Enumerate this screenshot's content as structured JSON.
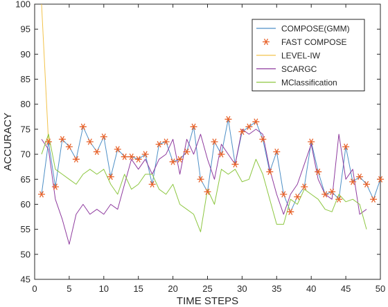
{
  "chart_data": {
    "type": "line",
    "xlabel": "TIME STEPS",
    "ylabel": "ACCURACY",
    "xlim": [
      0,
      50
    ],
    "ylim": [
      45,
      100
    ],
    "xticks": [
      0,
      5,
      10,
      15,
      20,
      25,
      30,
      35,
      40,
      45,
      50
    ],
    "yticks": [
      45,
      50,
      55,
      60,
      65,
      70,
      75,
      80,
      85,
      90,
      95,
      100
    ],
    "grid": false,
    "legend_position": "top-right",
    "series": [
      {
        "name": "COMPOSE(GMM)",
        "style": "line",
        "color": "#4d8fc6",
        "x": [
          1,
          2,
          3,
          4,
          5,
          6,
          7,
          8,
          9,
          10,
          11,
          12,
          13,
          14,
          15,
          16,
          17,
          18,
          19,
          20,
          21,
          22,
          23,
          24,
          25,
          26,
          27,
          28,
          29,
          30,
          31,
          32,
          33,
          34,
          35,
          36,
          37,
          38,
          39,
          40,
          41,
          42,
          43,
          44,
          45,
          46,
          47,
          48,
          49,
          50
        ],
        "values": [
          62,
          72.5,
          63.5,
          73,
          71.5,
          69,
          75.5,
          72.5,
          70.5,
          73.5,
          65.5,
          71,
          69.5,
          69.5,
          69,
          70,
          64,
          72,
          72.5,
          68.5,
          69,
          70.5,
          75.5,
          65,
          62.5,
          72.5,
          70,
          77,
          68,
          74.5,
          75.5,
          76.5,
          73,
          66.5,
          70.5,
          62,
          58.5,
          61.5,
          63.5,
          72.5,
          66.5,
          62,
          62.5,
          61,
          71.5,
          64.5,
          65.5,
          64,
          61,
          65
        ]
      },
      {
        "name": "FAST COMPOSE",
        "style": "marker",
        "color": "#e8622a",
        "x": [
          1,
          2,
          3,
          4,
          5,
          6,
          7,
          8,
          9,
          10,
          11,
          12,
          13,
          14,
          15,
          16,
          17,
          18,
          19,
          20,
          21,
          22,
          23,
          24,
          25,
          26,
          27,
          28,
          29,
          30,
          31,
          32,
          33,
          34,
          35,
          36,
          37,
          38,
          39,
          40,
          41,
          42,
          43,
          44,
          45,
          46,
          47,
          48,
          49,
          50
        ],
        "values": [
          62,
          72.5,
          63.5,
          73,
          71.5,
          69,
          75.5,
          72.5,
          70.5,
          73.5,
          65.5,
          71,
          69.5,
          69.5,
          69,
          70,
          64,
          72,
          72.5,
          68.5,
          69,
          70.5,
          75.5,
          65,
          62.5,
          72.5,
          70,
          77,
          68,
          74.5,
          75.5,
          76.5,
          73,
          66.5,
          70.5,
          62,
          58.5,
          61.5,
          63.5,
          72.5,
          66.5,
          62,
          62.5,
          61,
          71.5,
          64.5,
          65.5,
          64,
          61,
          65
        ]
      },
      {
        "name": "LEVEL-IW",
        "style": "line",
        "color": "#f2c24a",
        "x": [
          1,
          2
        ],
        "values": [
          100,
          72.5
        ]
      },
      {
        "name": "SCARGC",
        "style": "line",
        "color": "#8e3a9e",
        "x": [
          1,
          2,
          3,
          4,
          5,
          6,
          7,
          8,
          9,
          10,
          11,
          12,
          13,
          14,
          15,
          16,
          17,
          18,
          19,
          20,
          21,
          22,
          23,
          24,
          25,
          26,
          27,
          28,
          29,
          30,
          31,
          32,
          33,
          34,
          35,
          36,
          37,
          38,
          39,
          40,
          41,
          42,
          43,
          44,
          45,
          46,
          47,
          48
        ],
        "values": [
          73,
          71,
          61,
          57,
          52,
          58,
          60,
          58,
          59,
          58,
          60,
          59,
          64,
          69,
          67,
          69,
          66,
          69,
          70,
          73,
          66,
          73,
          70,
          74,
          69,
          65,
          72,
          70,
          68,
          75,
          74,
          75,
          74,
          67,
          62,
          58,
          62,
          64,
          68,
          72,
          65,
          62,
          61,
          74,
          65,
          67,
          58,
          59
        ]
      },
      {
        "name": "MClassification",
        "style": "line",
        "color": "#8cc63f",
        "x": [
          1,
          2,
          3,
          4,
          5,
          6,
          7,
          8,
          9,
          10,
          11,
          12,
          13,
          14,
          15,
          16,
          17,
          18,
          19,
          20,
          21,
          22,
          23,
          24,
          25,
          26,
          27,
          28,
          29,
          30,
          31,
          32,
          33,
          34,
          35,
          36,
          37,
          38,
          39,
          40,
          41,
          42,
          43,
          44,
          45,
          46,
          47,
          48
        ],
        "values": [
          70,
          74,
          67,
          66,
          65,
          64,
          66,
          67,
          66,
          67,
          64,
          62,
          66,
          63,
          64,
          66,
          66,
          63,
          62,
          64,
          60,
          59,
          58,
          54.5,
          63,
          60,
          67,
          66,
          67,
          64.5,
          65,
          69,
          66,
          61,
          56,
          56,
          61,
          60,
          63,
          62,
          61,
          59,
          58.5,
          62,
          60.5,
          61,
          60,
          55
        ]
      }
    ]
  }
}
